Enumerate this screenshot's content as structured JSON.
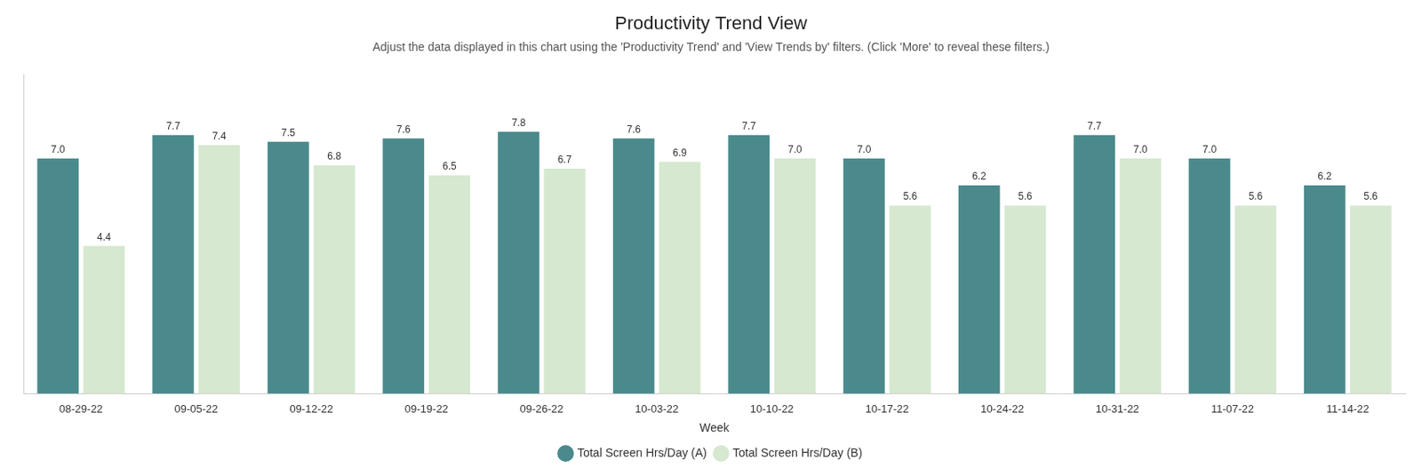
{
  "chart_data": {
    "type": "bar",
    "title": "Productivity Trend View",
    "subtitle": "Adjust the data displayed in this chart using the 'Productivity Trend' and 'View Trends by' filters. (Click 'More' to reveal these filters.)",
    "xlabel": "Week",
    "categories": [
      "08-29-22",
      "09-05-22",
      "09-12-22",
      "09-19-22",
      "09-26-22",
      "10-03-22",
      "10-10-22",
      "10-17-22",
      "10-24-22",
      "10-31-22",
      "11-07-22",
      "11-14-22"
    ],
    "series": [
      {
        "name": "Total Screen Hrs/Day (A)",
        "color": "#4a8a8c",
        "values": [
          7.0,
          7.7,
          7.5,
          7.6,
          7.8,
          7.6,
          7.7,
          7.0,
          6.2,
          7.7,
          7.0,
          6.2
        ],
        "value_labels": [
          "7.0",
          "7.7",
          "7.5",
          "7.6",
          "7.8",
          "7.6",
          "7.7",
          "7.0",
          "6.2",
          "7.7",
          "7.0",
          "6.2"
        ]
      },
      {
        "name": "Total Screen Hrs/Day (B)",
        "color": "#d6e8d0",
        "values": [
          4.4,
          7.4,
          6.8,
          6.5,
          6.7,
          6.9,
          7.0,
          5.6,
          5.6,
          7.0,
          5.6,
          5.6
        ],
        "value_labels": [
          "4.4",
          "7.4",
          "6.8",
          "6.5",
          "6.7",
          "6.9",
          "7.0",
          "5.6",
          "5.6",
          "7.0",
          "5.6",
          "5.6"
        ]
      }
    ],
    "ylim": [
      0,
      9.5
    ],
    "grid": false,
    "legend": "bottom",
    "data_labels": true,
    "tick_labels": "x"
  }
}
